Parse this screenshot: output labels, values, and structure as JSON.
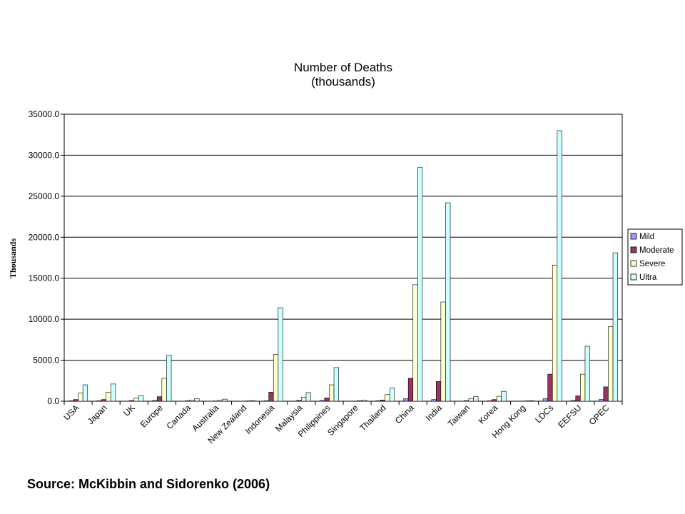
{
  "source_text": "Source: McKibbin and Sidorenko (2006)",
  "chart_data": {
    "type": "bar",
    "title": "Number of Deaths",
    "subtitle": "(thousands)",
    "xlabel": "",
    "ylabel": "Thousands",
    "ylim": [
      0,
      35000
    ],
    "y_ticks": [
      "0.0",
      "5000.0",
      "10000.0",
      "15000.0",
      "20000.0",
      "25000.0",
      "30000.0",
      "35000.0"
    ],
    "grid": true,
    "legend_position": "right",
    "categories": [
      "USA",
      "Japan",
      "UK",
      "Europe",
      "Canada",
      "Australia",
      "New Zealand",
      "Indonesia",
      "Malaysia",
      "Philippines",
      "Singapore",
      "Thailand",
      "China",
      "India",
      "Taiwan",
      "Korea",
      "Hong Kong",
      "LDCs",
      "EEFSU",
      "OPEC"
    ],
    "series": [
      {
        "name": "Mild",
        "color": "#9999ff",
        "values": [
          50,
          50,
          20,
          100,
          10,
          10,
          5,
          50,
          20,
          100,
          5,
          50,
          300,
          200,
          20,
          50,
          10,
          300,
          100,
          200
        ]
      },
      {
        "name": "Moderate",
        "color": "#993366",
        "values": [
          200,
          200,
          80,
          550,
          50,
          30,
          10,
          1100,
          100,
          400,
          20,
          150,
          2800,
          2400,
          70,
          200,
          20,
          3300,
          650,
          1750
        ]
      },
      {
        "name": "Severe",
        "color": "#ffffcc",
        "values": [
          1000,
          1100,
          400,
          2800,
          150,
          150,
          40,
          5700,
          500,
          2000,
          60,
          800,
          14200,
          12100,
          300,
          600,
          40,
          16600,
          3300,
          9100
        ]
      },
      {
        "name": "Ultra",
        "color": "#ccffff",
        "values": [
          2000,
          2100,
          700,
          5600,
          300,
          250,
          80,
          11400,
          1050,
          4100,
          120,
          1600,
          28500,
          24200,
          550,
          1200,
          70,
          33000,
          6700,
          18100
        ]
      }
    ]
  }
}
